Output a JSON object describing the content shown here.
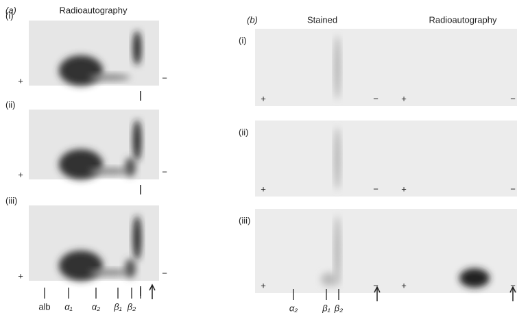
{
  "panel_a": {
    "letter": "(a)",
    "heading": "Radioautography",
    "strips": [
      {
        "label": "(i)",
        "plus": "+",
        "minus": "−"
      },
      {
        "label": "(ii)",
        "plus": "+",
        "minus": "−"
      },
      {
        "label": "(iii)",
        "plus": "+",
        "minus": "−"
      }
    ],
    "markers": [
      "alb",
      "α₁",
      "α₂",
      "β₁",
      "β₂"
    ]
  },
  "panel_b": {
    "letter": "(b)",
    "headings": [
      "Stained",
      "Radioautography"
    ],
    "strips": [
      {
        "label": "(i)",
        "plus": "+",
        "minus": "−"
      },
      {
        "label": "(ii)",
        "plus": "+",
        "minus": "−"
      },
      {
        "label": "(iii)",
        "plus": "+",
        "minus": "−"
      }
    ],
    "markers": [
      "α₂",
      "β₁",
      "β₂"
    ]
  }
}
